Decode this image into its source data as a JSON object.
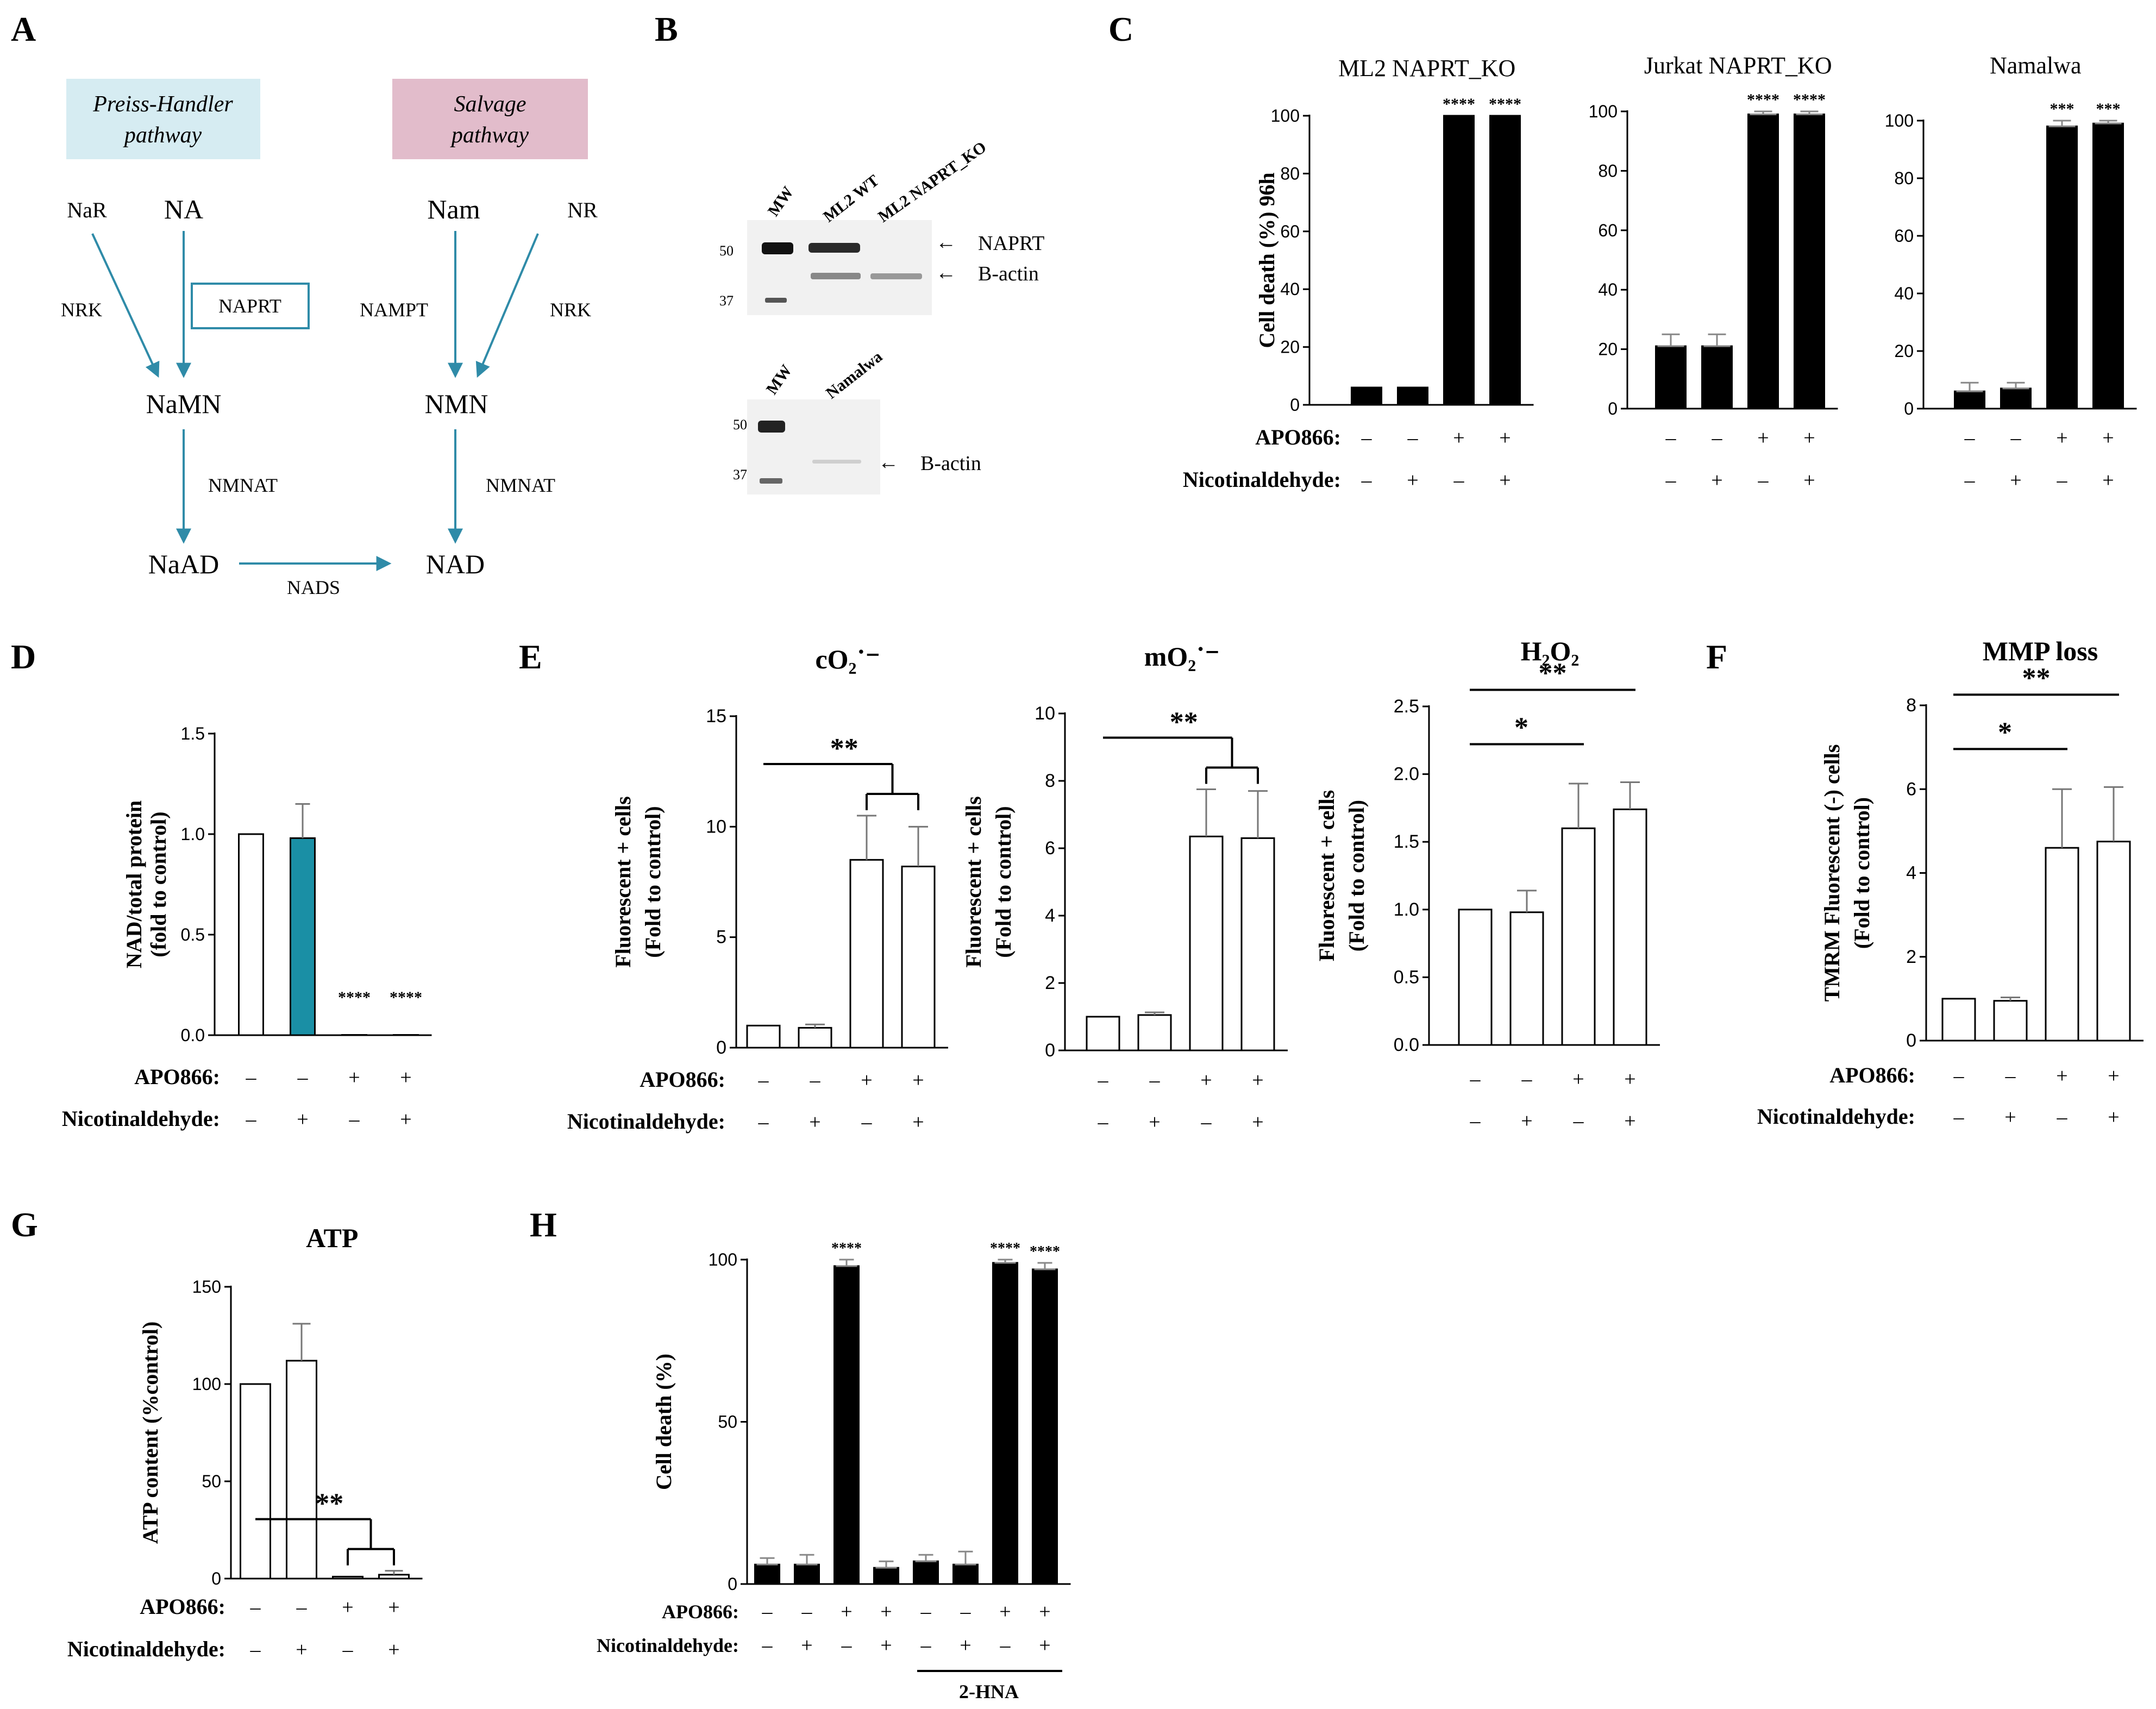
{
  "figure": {
    "panels": {
      "A": "A",
      "B": "B",
      "C": "C",
      "D": "D",
      "E": "E",
      "F": "F",
      "G": "G",
      "H": "H"
    }
  },
  "pathway": {
    "preiss_line1": "Preiss-Handler",
    "preiss_line2": "pathway",
    "salvage_line1": "Salvage",
    "salvage_line2": "pathway",
    "preiss_color": "#d6ecf2",
    "salvage_color": "#e2bccb",
    "arrow_color": "#2f8ba8",
    "nodes": {
      "NaR": "NaR",
      "NA": "NA",
      "Nam": "Nam",
      "NR": "NR",
      "NaMN": "NaMN",
      "NMN": "NMN",
      "NaAD": "NaAD",
      "NAD": "NAD"
    },
    "enzymes": {
      "NRK_left": "NRK",
      "NAPRT": "NAPRT",
      "NAMPT": "NAMPT",
      "NRK_right": "NRK",
      "NMNAT_left": "NMNAT",
      "NMNAT_right": "NMNAT",
      "NADS": "NADS"
    }
  },
  "western": {
    "top_lanes": [
      "MW",
      "ML2 WT",
      "ML2 NAPRT_KO"
    ],
    "bottom_lanes": [
      "MW",
      "Namalwa"
    ],
    "mw_marks": [
      "50",
      "37"
    ],
    "top_bands": [
      "NAPRT",
      "B-actin"
    ],
    "bottom_bands": [
      "B-actin"
    ],
    "arrow": "←"
  },
  "treatment_labels": {
    "apo": "APO866:",
    "nic": "Nicotinaldehyde:",
    "hna": "2-HNA",
    "minus": "–",
    "plus": "+"
  },
  "chart_data": [
    {
      "id": "C1",
      "type": "bar",
      "title": "ML2 NAPRT_KO",
      "ylabel": "Cell death (%) 96h",
      "ylim": [
        0,
        100
      ],
      "yticks": [
        "0",
        "20",
        "40",
        "60",
        "80",
        "100"
      ],
      "apo": [
        "–",
        "–",
        "+",
        "+"
      ],
      "nic": [
        "–",
        "+",
        "–",
        "+"
      ],
      "values": [
        6,
        6,
        100,
        100
      ],
      "errors": [
        0,
        0,
        0,
        0
      ],
      "annotations": [
        "",
        "",
        "****",
        "****"
      ],
      "fill": "#000000"
    },
    {
      "id": "C2",
      "type": "bar",
      "title": "Jurkat NAPRT_KO",
      "ylabel": "",
      "ylim": [
        0,
        100
      ],
      "yticks": [
        "0",
        "20",
        "40",
        "60",
        "80",
        "100"
      ],
      "apo": [
        "–",
        "–",
        "+",
        "+"
      ],
      "nic": [
        "–",
        "+",
        "–",
        "+"
      ],
      "values": [
        21,
        21,
        99,
        99
      ],
      "errors": [
        4,
        4,
        1,
        1
      ],
      "annotations": [
        "",
        "",
        "****",
        "****"
      ],
      "fill": "#000000"
    },
    {
      "id": "C3",
      "type": "bar",
      "title": "Namalwa",
      "ylabel": "",
      "ylim": [
        0,
        100
      ],
      "yticks": [
        "0",
        "20",
        "40",
        "60",
        "80",
        "100"
      ],
      "apo": [
        "–",
        "–",
        "+",
        "+"
      ],
      "nic": [
        "–",
        "+",
        "–",
        "+"
      ],
      "values": [
        6,
        7,
        98,
        99
      ],
      "errors": [
        3,
        2,
        2,
        1
      ],
      "annotations": [
        "",
        "",
        "***",
        "***"
      ],
      "fill": "#000000"
    },
    {
      "id": "D",
      "type": "bar",
      "title": "",
      "ylabel": "NAD/total protein",
      "ylabel2": "(fold to control)",
      "ylim": [
        0,
        1.5
      ],
      "yticks": [
        "0.0",
        "0.5",
        "1.0",
        "1.5"
      ],
      "apo": [
        "–",
        "–",
        "+",
        "+"
      ],
      "nic": [
        "–",
        "+",
        "–",
        "+"
      ],
      "values": [
        1.0,
        0.98,
        0,
        0
      ],
      "errors": [
        0,
        0.17,
        0,
        0
      ],
      "annotations": [
        "",
        "",
        "****",
        "****"
      ],
      "fills": [
        "#ffffff",
        "#1a8fa5",
        "#ffffff",
        "#ffffff"
      ]
    },
    {
      "id": "E1",
      "type": "bar",
      "title": "cO₂˙⁻",
      "ylabel": "Fluorescent + cells",
      "ylabel2": "(Fold to control)",
      "ylim": [
        0,
        15
      ],
      "yticks": [
        "0",
        "5",
        "10",
        "15"
      ],
      "apo": [
        "–",
        "–",
        "+",
        "+"
      ],
      "nic": [
        "–",
        "+",
        "–",
        "+"
      ],
      "values": [
        1.0,
        0.9,
        8.5,
        8.2
      ],
      "errors": [
        0,
        0.15,
        2.0,
        1.8
      ],
      "significance": [
        "**"
      ],
      "fill": "#ffffff"
    },
    {
      "id": "E2",
      "type": "bar",
      "title": "mO₂˙⁻",
      "ylabel": "Fluorescent + cells",
      "ylabel2": "(Fold to control)",
      "ylim": [
        0,
        10
      ],
      "yticks": [
        "0",
        "2",
        "4",
        "6",
        "8",
        "10"
      ],
      "apo": [
        "–",
        "–",
        "+",
        "+"
      ],
      "nic": [
        "–",
        "+",
        "–",
        "+"
      ],
      "values": [
        1.0,
        1.05,
        6.35,
        6.3
      ],
      "errors": [
        0,
        0.08,
        1.4,
        1.4
      ],
      "significance": [
        "**"
      ],
      "fill": "#ffffff"
    },
    {
      "id": "E3",
      "type": "bar",
      "title": "H₂O₂",
      "ylabel": "Fluorescent + cells",
      "ylabel2": "(Fold to control)",
      "ylim": [
        0,
        2.5
      ],
      "yticks": [
        "0.0",
        "0.5",
        "1.0",
        "1.5",
        "2.0",
        "2.5"
      ],
      "apo": [
        "–",
        "–",
        "+",
        "+"
      ],
      "nic": [
        "–",
        "+",
        "–",
        "+"
      ],
      "values": [
        1.0,
        0.98,
        1.6,
        1.74
      ],
      "errors": [
        0,
        0.16,
        0.33,
        0.2
      ],
      "significance": [
        "*",
        "**"
      ],
      "fill": "#ffffff"
    },
    {
      "id": "F",
      "type": "bar",
      "title": "MMP loss",
      "ylabel": "TMRM Fluorescent (-) cells",
      "ylabel2": "(Fold to control)",
      "ylim": [
        0,
        8
      ],
      "yticks": [
        "0",
        "2",
        "4",
        "6",
        "8"
      ],
      "apo": [
        "–",
        "–",
        "+",
        "+"
      ],
      "nic": [
        "–",
        "+",
        "–",
        "+"
      ],
      "values": [
        1.0,
        0.95,
        4.6,
        4.75
      ],
      "errors": [
        0,
        0.08,
        1.4,
        1.3
      ],
      "significance": [
        "*",
        "**"
      ],
      "fill": "#ffffff"
    },
    {
      "id": "G",
      "type": "bar",
      "title": "ATP",
      "ylabel": "ATP content (%control)",
      "ylim": [
        0,
        150
      ],
      "yticks": [
        "0",
        "50",
        "100",
        "150"
      ],
      "apo": [
        "–",
        "–",
        "+",
        "+"
      ],
      "nic": [
        "–",
        "+",
        "–",
        "+"
      ],
      "values": [
        100,
        112,
        1,
        2
      ],
      "errors": [
        0,
        19,
        0,
        2
      ],
      "significance": [
        "**"
      ],
      "fill": "#ffffff"
    },
    {
      "id": "H",
      "type": "bar",
      "title": "",
      "ylabel": "Cell death (%)",
      "ylim": [
        0,
        100
      ],
      "yticks": [
        "0",
        "50",
        "100"
      ],
      "apo": [
        "–",
        "–",
        "+",
        "+",
        "–",
        "–",
        "+",
        "+"
      ],
      "nic": [
        "–",
        "+",
        "–",
        "+",
        "–",
        "+",
        "–",
        "+"
      ],
      "hna": [
        "–",
        "–",
        "–",
        "–",
        "+",
        "+",
        "+",
        "+"
      ],
      "values": [
        6,
        6,
        98,
        5,
        7,
        6,
        99,
        97
      ],
      "errors": [
        2,
        3,
        2,
        2,
        2,
        4,
        1,
        2
      ],
      "annotations": [
        "",
        "",
        "****",
        "",
        "",
        "",
        "****",
        "****"
      ],
      "fill": "#000000"
    }
  ]
}
